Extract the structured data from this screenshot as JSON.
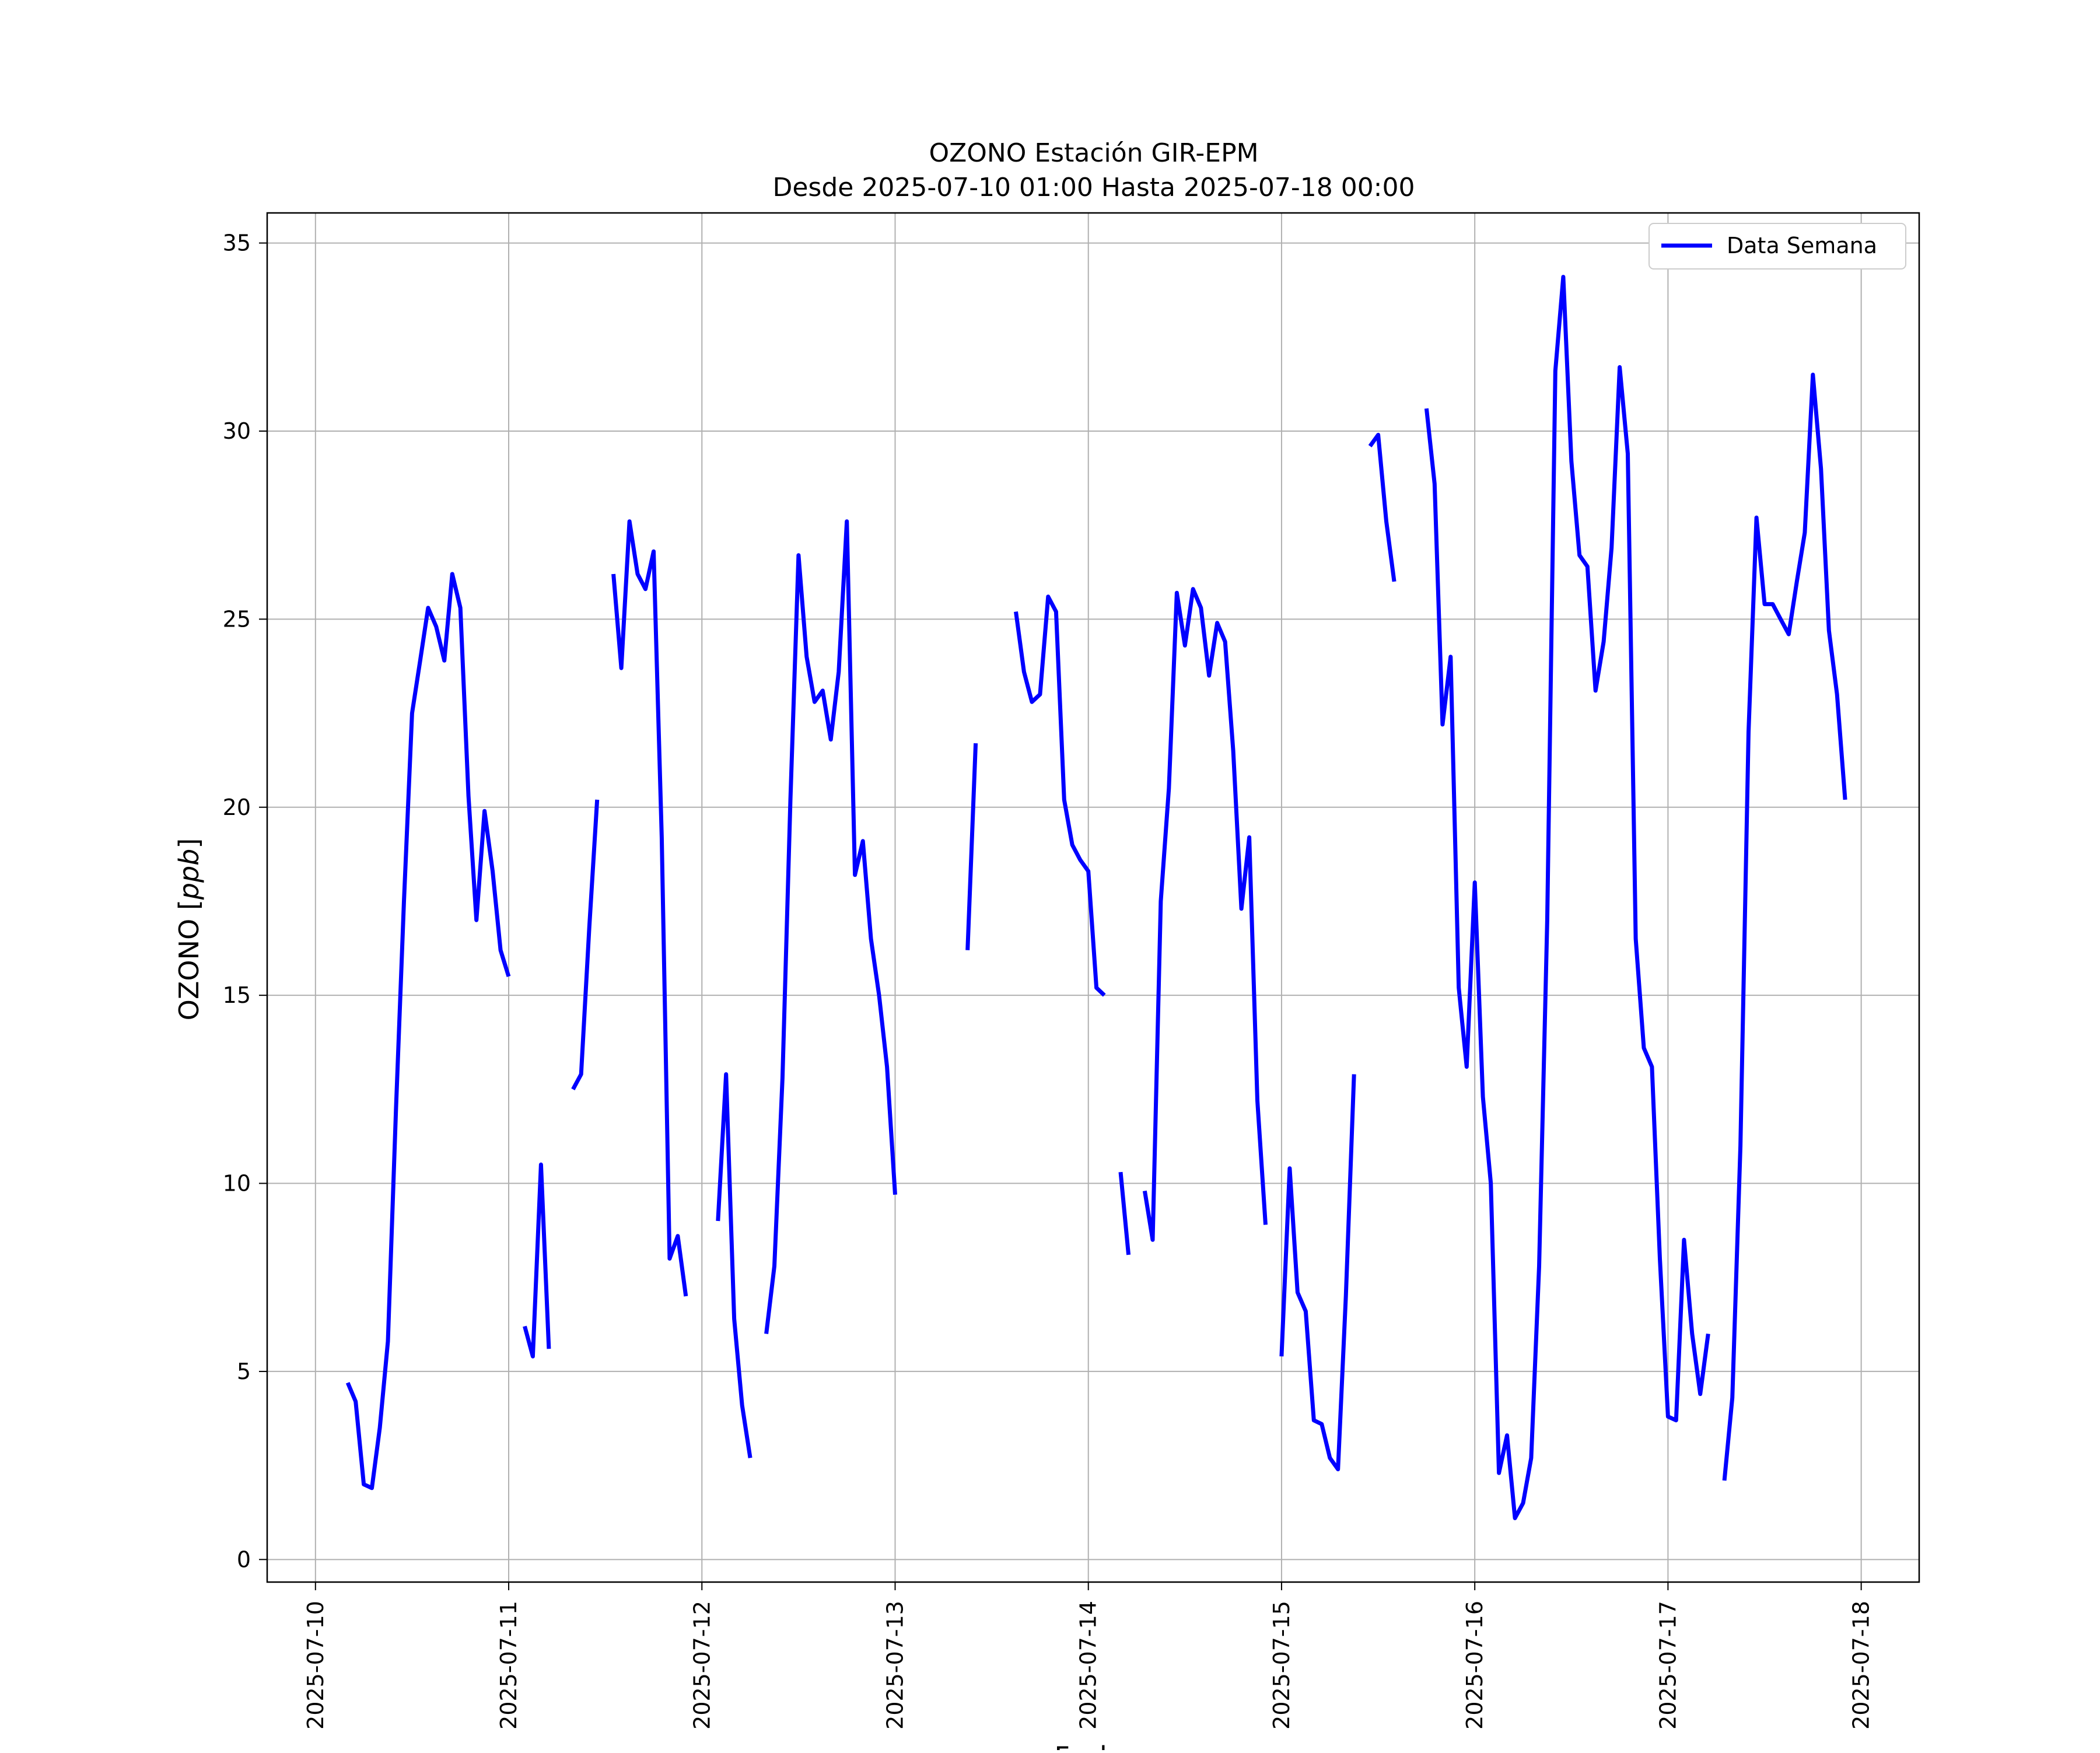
{
  "chart_data": {
    "type": "line",
    "title_line1": "OZONO Estación GIR-EPM",
    "title_line2": "Desde 2025-07-10 01:00 Hasta 2025-07-18 00:00",
    "xlabel": "Fecha",
    "ylabel": "OZONO [ppb]",
    "ylabel_prefix": "OZONO ",
    "ylabel_unit": "ppb",
    "x_tick_labels": [
      "2025-07-10",
      "2025-07-11",
      "2025-07-12",
      "2025-07-13",
      "2025-07-14",
      "2025-07-15",
      "2025-07-16",
      "2025-07-17",
      "2025-07-18"
    ],
    "x_range_days": [
      -0.25,
      8.3
    ],
    "y_ticks": [
      0,
      5,
      10,
      15,
      20,
      25,
      30,
      35
    ],
    "ylim": [
      -0.6,
      35.8
    ],
    "grid": true,
    "legend_position": "upper right",
    "series": [
      {
        "name": "Data Semana",
        "color": "#0000ff",
        "segments": [
          [
            [
              0.167,
              4.7
            ],
            [
              0.208,
              4.2
            ],
            [
              0.25,
              2.0
            ],
            [
              0.292,
              1.9
            ],
            [
              0.333,
              3.5
            ],
            [
              0.375,
              5.8
            ],
            [
              0.417,
              12.0
            ],
            [
              0.458,
              17.5
            ],
            [
              0.5,
              22.5
            ],
            [
              0.542,
              23.9
            ],
            [
              0.583,
              25.3
            ],
            [
              0.625,
              24.8
            ],
            [
              0.667,
              23.9
            ],
            [
              0.708,
              26.2
            ],
            [
              0.75,
              25.3
            ],
            [
              0.792,
              20.3
            ],
            [
              0.833,
              17.0
            ],
            [
              0.875,
              19.9
            ],
            [
              0.917,
              18.3
            ],
            [
              0.958,
              16.2
            ],
            [
              1.0,
              15.5
            ]
          ],
          [
            [
              1.083,
              6.2
            ],
            [
              1.125,
              5.4
            ],
            [
              1.167,
              10.5
            ],
            [
              1.208,
              5.6
            ]
          ],
          [
            [
              1.333,
              12.5
            ],
            [
              1.375,
              12.9
            ],
            [
              1.417,
              16.8
            ],
            [
              1.458,
              20.2
            ]
          ],
          [
            [
              1.542,
              26.2
            ],
            [
              1.583,
              23.7
            ],
            [
              1.625,
              27.6
            ],
            [
              1.667,
              26.2
            ],
            [
              1.708,
              25.8
            ],
            [
              1.75,
              26.8
            ],
            [
              1.792,
              19.2
            ],
            [
              1.833,
              8.0
            ],
            [
              1.875,
              8.6
            ],
            [
              1.917,
              7.0
            ]
          ],
          [
            [
              2.083,
              9.0
            ],
            [
              2.125,
              12.9
            ],
            [
              2.167,
              6.4
            ],
            [
              2.208,
              4.1
            ],
            [
              2.25,
              2.7
            ]
          ],
          [
            [
              2.333,
              6.0
            ],
            [
              2.375,
              7.8
            ],
            [
              2.417,
              12.8
            ],
            [
              2.458,
              20.2
            ],
            [
              2.5,
              26.7
            ],
            [
              2.542,
              24.0
            ],
            [
              2.583,
              22.8
            ],
            [
              2.625,
              23.1
            ],
            [
              2.667,
              21.8
            ],
            [
              2.708,
              23.6
            ],
            [
              2.75,
              27.6
            ],
            [
              2.792,
              18.2
            ],
            [
              2.833,
              19.1
            ],
            [
              2.875,
              16.5
            ],
            [
              2.917,
              15.0
            ],
            [
              2.958,
              13.1
            ],
            [
              3.0,
              9.7
            ]
          ],
          [
            [
              3.375,
              16.2
            ],
            [
              3.417,
              21.7
            ]
          ],
          [
            [
              3.625,
              25.2
            ],
            [
              3.667,
              23.6
            ],
            [
              3.708,
              22.8
            ],
            [
              3.75,
              23.0
            ],
            [
              3.792,
              25.6
            ],
            [
              3.833,
              25.2
            ],
            [
              3.875,
              20.2
            ],
            [
              3.917,
              19.0
            ],
            [
              3.958,
              18.6
            ],
            [
              4.0,
              18.3
            ],
            [
              4.042,
              15.2
            ],
            [
              4.083,
              15.0
            ]
          ],
          [
            [
              4.167,
              10.3
            ],
            [
              4.208,
              8.1
            ]
          ],
          [
            [
              4.292,
              9.8
            ],
            [
              4.333,
              8.5
            ],
            [
              4.375,
              17.5
            ],
            [
              4.417,
              20.5
            ],
            [
              4.458,
              25.7
            ],
            [
              4.5,
              24.3
            ],
            [
              4.542,
              25.8
            ],
            [
              4.583,
              25.3
            ],
            [
              4.625,
              23.5
            ],
            [
              4.667,
              24.9
            ],
            [
              4.708,
              24.4
            ],
            [
              4.75,
              21.5
            ],
            [
              4.792,
              17.3
            ],
            [
              4.833,
              19.2
            ],
            [
              4.875,
              12.2
            ],
            [
              4.917,
              8.9
            ]
          ],
          [
            [
              5.0,
              5.4
            ],
            [
              5.042,
              10.4
            ],
            [
              5.083,
              7.1
            ],
            [
              5.125,
              6.6
            ],
            [
              5.167,
              3.7
            ],
            [
              5.208,
              3.6
            ],
            [
              5.25,
              2.7
            ],
            [
              5.292,
              2.4
            ],
            [
              5.333,
              7.0
            ],
            [
              5.375,
              12.9
            ]
          ],
          [
            [
              5.458,
              29.6
            ],
            [
              5.5,
              29.9
            ],
            [
              5.542,
              27.6
            ],
            [
              5.583,
              26.0
            ]
          ],
          [
            [
              5.75,
              30.6
            ],
            [
              5.792,
              28.6
            ],
            [
              5.833,
              22.2
            ],
            [
              5.875,
              24.0
            ],
            [
              5.917,
              15.2
            ],
            [
              5.958,
              13.1
            ],
            [
              6.0,
              18.0
            ],
            [
              6.042,
              12.3
            ],
            [
              6.083,
              10.0
            ],
            [
              6.125,
              2.3
            ],
            [
              6.167,
              3.3
            ],
            [
              6.208,
              1.1
            ],
            [
              6.25,
              1.5
            ],
            [
              6.292,
              2.7
            ],
            [
              6.333,
              7.8
            ],
            [
              6.375,
              17.0
            ],
            [
              6.417,
              31.6
            ],
            [
              6.458,
              34.1
            ],
            [
              6.5,
              29.2
            ],
            [
              6.542,
              26.7
            ],
            [
              6.583,
              26.4
            ],
            [
              6.625,
              23.1
            ],
            [
              6.667,
              24.4
            ],
            [
              6.708,
              26.9
            ],
            [
              6.75,
              31.7
            ],
            [
              6.792,
              29.4
            ],
            [
              6.833,
              16.5
            ],
            [
              6.875,
              13.6
            ],
            [
              6.917,
              13.1
            ],
            [
              6.958,
              8.0
            ],
            [
              7.0,
              3.8
            ],
            [
              7.042,
              3.7
            ],
            [
              7.083,
              8.5
            ],
            [
              7.125,
              6.0
            ],
            [
              7.167,
              4.4
            ],
            [
              7.208,
              6.0
            ]
          ],
          [
            [
              7.292,
              2.1
            ],
            [
              7.333,
              4.3
            ],
            [
              7.375,
              11.0
            ],
            [
              7.417,
              22.0
            ],
            [
              7.458,
              27.7
            ],
            [
              7.5,
              25.4
            ],
            [
              7.542,
              25.4
            ],
            [
              7.583,
              25.0
            ],
            [
              7.625,
              24.6
            ],
            [
              7.667,
              26.0
            ],
            [
              7.708,
              27.3
            ],
            [
              7.75,
              31.5
            ],
            [
              7.792,
              29.0
            ],
            [
              7.833,
              24.7
            ],
            [
              7.875,
              23.0
            ],
            [
              7.917,
              20.2
            ]
          ]
        ]
      }
    ]
  }
}
